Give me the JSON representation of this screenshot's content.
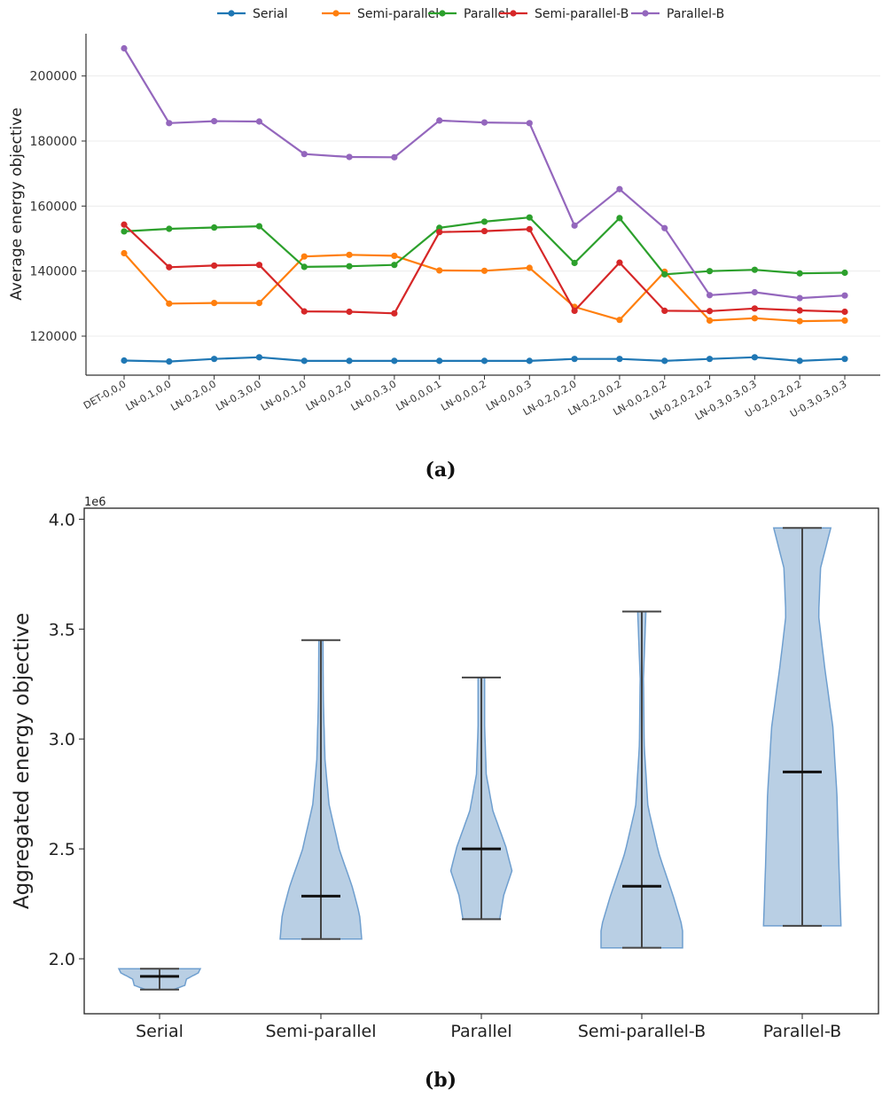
{
  "figure": {
    "caption_a": "(a)",
    "caption_b": "(b)"
  },
  "colors": {
    "Serial": "#1f77b4",
    "Semi-parallel": "#ff7f0e",
    "Parallel": "#2ca02c",
    "Semi-parallel-B": "#d62728",
    "Parallel-B": "#9467bd",
    "violin_fill": "#b9cfe4",
    "violin_edge": "#6f9fcf"
  },
  "chart_data": [
    {
      "type": "line",
      "ylabel": "Average energy objective",
      "xlabel": "",
      "legend_position": "top-center",
      "ylim": [
        108000,
        213000
      ],
      "yticks": [
        120000,
        140000,
        160000,
        180000,
        200000
      ],
      "ytick_labels": [
        "120000",
        "140000",
        "160000",
        "180000",
        "200000"
      ],
      "grid": "horizontal",
      "categories": [
        "DET-0,0,0",
        "LN-0.1,0,0",
        "LN-0.2,0,0",
        "LN-0.3,0,0",
        "LN-0,0.1,0",
        "LN-0,0.2,0",
        "LN-0,0.3,0",
        "LN-0,0,0.1",
        "LN-0,0,0.2",
        "LN-0,0,0.3",
        "LN-0.2,0.2,0",
        "LN-0.2,0,0.2",
        "LN-0,0.2,0.2",
        "LN-0.2,0.2,0.2",
        "LN-0.3,0.3,0.3",
        "U-0.2,0.2,0.2",
        "U-0.3,0.3,0.3"
      ],
      "series": [
        {
          "name": "Serial",
          "values": [
            112500,
            112200,
            113000,
            113500,
            112400,
            112400,
            112400,
            112400,
            112400,
            112400,
            113000,
            113000,
            112400,
            113000,
            113500,
            112400,
            113000
          ]
        },
        {
          "name": "Semi-parallel",
          "values": [
            145500,
            130000,
            130200,
            130200,
            144500,
            145000,
            144700,
            140200,
            140100,
            141000,
            129000,
            125000,
            139800,
            124800,
            125500,
            124600,
            124800
          ]
        },
        {
          "name": "Parallel",
          "values": [
            152200,
            153000,
            153400,
            153800,
            141300,
            141500,
            141900,
            153300,
            155200,
            156500,
            142500,
            156300,
            139000,
            140000,
            140400,
            139300,
            139500
          ]
        },
        {
          "name": "Semi-parallel-B",
          "values": [
            154300,
            141200,
            141700,
            141900,
            127600,
            127500,
            127000,
            152000,
            152300,
            152900,
            127800,
            142600,
            127800,
            127700,
            128500,
            127900,
            127500
          ]
        },
        {
          "name": "Parallel-B",
          "values": [
            208500,
            185500,
            186100,
            186000,
            176000,
            175100,
            175000,
            186300,
            185700,
            185500,
            154000,
            165200,
            153200,
            132600,
            133500,
            131700,
            132500
          ]
        }
      ]
    },
    {
      "type": "violin",
      "ylabel": "Aggregated energy objective",
      "xlabel": "",
      "y_multiplier_label": "1e6",
      "ylim": [
        1.75,
        4.05
      ],
      "yticks": [
        2.0,
        2.5,
        3.0,
        3.5,
        4.0
      ],
      "ytick_labels": [
        "2.0",
        "2.5",
        "3.0",
        "3.5",
        "4.0"
      ],
      "categories": [
        "Serial",
        "Semi-parallel",
        "Parallel",
        "Semi-parallel-B",
        "Parallel-B"
      ],
      "series": [
        {
          "name": "Serial",
          "min": 1.86,
          "median": 1.92,
          "max": 1.955
        },
        {
          "name": "Semi-parallel",
          "min": 2.09,
          "median": 2.285,
          "max": 3.45
        },
        {
          "name": "Parallel",
          "min": 2.18,
          "median": 2.5,
          "max": 3.28
        },
        {
          "name": "Semi-parallel-B",
          "min": 2.05,
          "median": 2.33,
          "max": 3.58
        },
        {
          "name": "Parallel-B",
          "min": 2.15,
          "median": 2.85,
          "max": 3.96
        }
      ]
    }
  ]
}
